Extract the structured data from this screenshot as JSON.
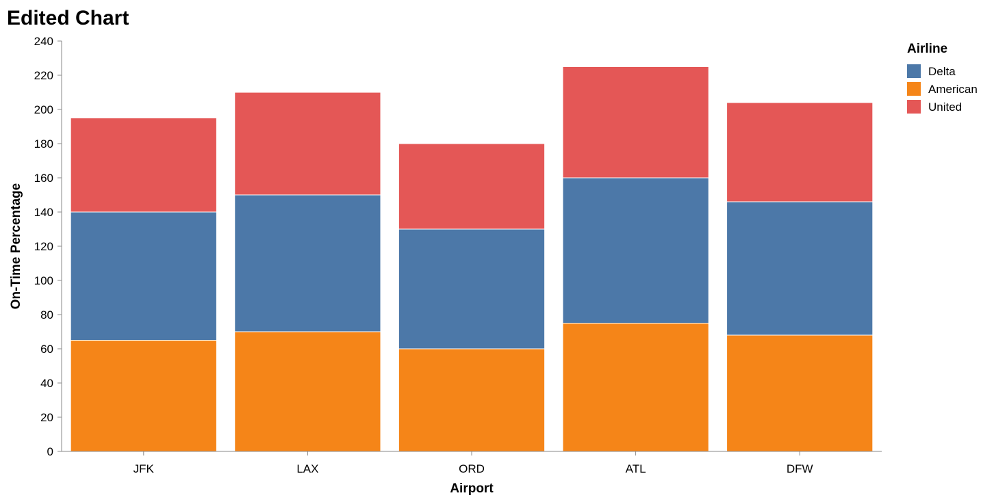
{
  "chart_data": {
    "type": "bar",
    "stacked": true,
    "title": "Edited Chart",
    "xlabel": "Airport",
    "ylabel": "On-Time Percentage",
    "categories": [
      "JFK",
      "LAX",
      "ORD",
      "ATL",
      "DFW"
    ],
    "ylim": [
      0,
      240
    ],
    "yticks": [
      0,
      20,
      40,
      60,
      80,
      100,
      120,
      140,
      160,
      180,
      200,
      220,
      240
    ],
    "grid": false,
    "legend": {
      "title": "Airline",
      "position": "top-right"
    },
    "series": [
      {
        "name": "American",
        "color": "#f58518",
        "values": [
          65,
          70,
          60,
          75,
          68
        ]
      },
      {
        "name": "Delta",
        "color": "#4c78a8",
        "values": [
          75,
          80,
          70,
          85,
          78
        ]
      },
      {
        "name": "United",
        "color": "#e45756",
        "values": [
          55,
          60,
          50,
          65,
          58
        ]
      }
    ],
    "legend_order": [
      "Delta",
      "American",
      "United"
    ]
  }
}
